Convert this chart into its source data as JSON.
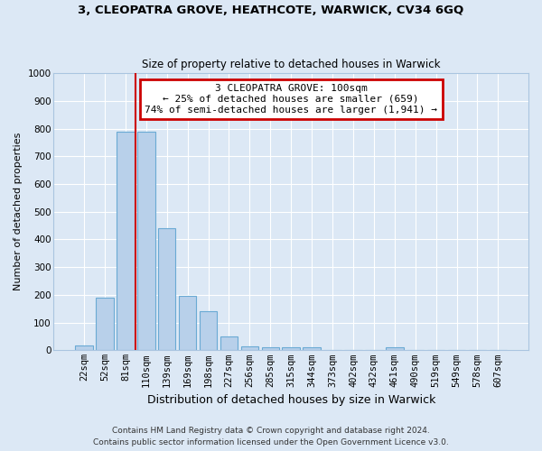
{
  "title": "3, CLEOPATRA GROVE, HEATHCOTE, WARWICK, CV34 6GQ",
  "subtitle": "Size of property relative to detached houses in Warwick",
  "xlabel": "Distribution of detached houses by size in Warwick",
  "ylabel": "Number of detached properties",
  "categories": [
    "22sqm",
    "52sqm",
    "81sqm",
    "110sqm",
    "139sqm",
    "169sqm",
    "198sqm",
    "227sqm",
    "256sqm",
    "285sqm",
    "315sqm",
    "344sqm",
    "373sqm",
    "402sqm",
    "432sqm",
    "461sqm",
    "490sqm",
    "519sqm",
    "549sqm",
    "578sqm",
    "607sqm"
  ],
  "values": [
    18,
    190,
    790,
    790,
    440,
    195,
    140,
    50,
    15,
    12,
    10,
    10,
    0,
    0,
    0,
    10,
    0,
    0,
    0,
    0,
    0
  ],
  "bar_color": "#b8d0ea",
  "bar_edge_color": "#6aaad4",
  "fig_bg_color": "#dce8f5",
  "axes_bg_color": "#dce8f5",
  "grid_color": "#ffffff",
  "vline_x": 2.5,
  "vline_color": "#cc0000",
  "annotation_text": "3 CLEOPATRA GROVE: 100sqm\n← 25% of detached houses are smaller (659)\n74% of semi-detached houses are larger (1,941) →",
  "annotation_box_color": "#ffffff",
  "annotation_box_edge": "#cc0000",
  "ylim": [
    0,
    1000
  ],
  "yticks": [
    0,
    100,
    200,
    300,
    400,
    500,
    600,
    700,
    800,
    900,
    1000
  ],
  "footer1": "Contains HM Land Registry data © Crown copyright and database right 2024.",
  "footer2": "Contains public sector information licensed under the Open Government Licence v3.0."
}
